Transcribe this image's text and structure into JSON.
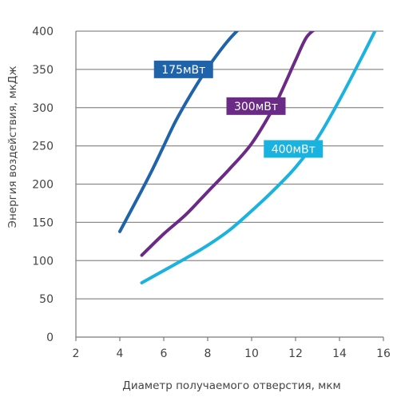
{
  "chart_data": {
    "type": "line",
    "title": "",
    "xlabel": "Диаметр получаемого отверстия, мкм",
    "ylabel": "Энергия воздействия, мкДж",
    "xlim": [
      2,
      16
    ],
    "ylim": [
      0,
      400
    ],
    "xticks": [
      2,
      4,
      6,
      8,
      10,
      12,
      14,
      16
    ],
    "yticks": [
      0,
      50,
      100,
      150,
      200,
      250,
      300,
      350,
      400
    ],
    "grid": "horizontal",
    "legend": "inline labels",
    "series": [
      {
        "name": "175мВт",
        "color": "#1f63ab",
        "x": [
          4.0,
          4.5,
          5.0,
          5.5,
          6.0,
          6.5,
          7.0,
          7.5,
          8.0,
          8.5,
          9.0,
          9.5
        ],
        "y": [
          138,
          165,
          192,
          220,
          250,
          280,
          306,
          330,
          352,
          372,
          390,
          405
        ]
      },
      {
        "name": "300мВт",
        "color": "#6b2a86",
        "x": [
          5.0,
          6.0,
          7.0,
          8.0,
          9.0,
          10.0,
          11.0,
          11.5,
          12.0,
          12.5,
          13.0
        ],
        "y": [
          107,
          135,
          160,
          190,
          220,
          253,
          300,
          330,
          362,
          392,
          405
        ]
      },
      {
        "name": "400мВт",
        "color": "#1ab2de",
        "x": [
          5.0,
          6.0,
          7.0,
          8.0,
          9.0,
          10.0,
          11.0,
          12.0,
          13.0,
          14.0,
          15.0,
          15.7
        ],
        "y": [
          71,
          87,
          103,
          120,
          140,
          165,
          192,
          222,
          260,
          310,
          365,
          405
        ]
      }
    ]
  }
}
